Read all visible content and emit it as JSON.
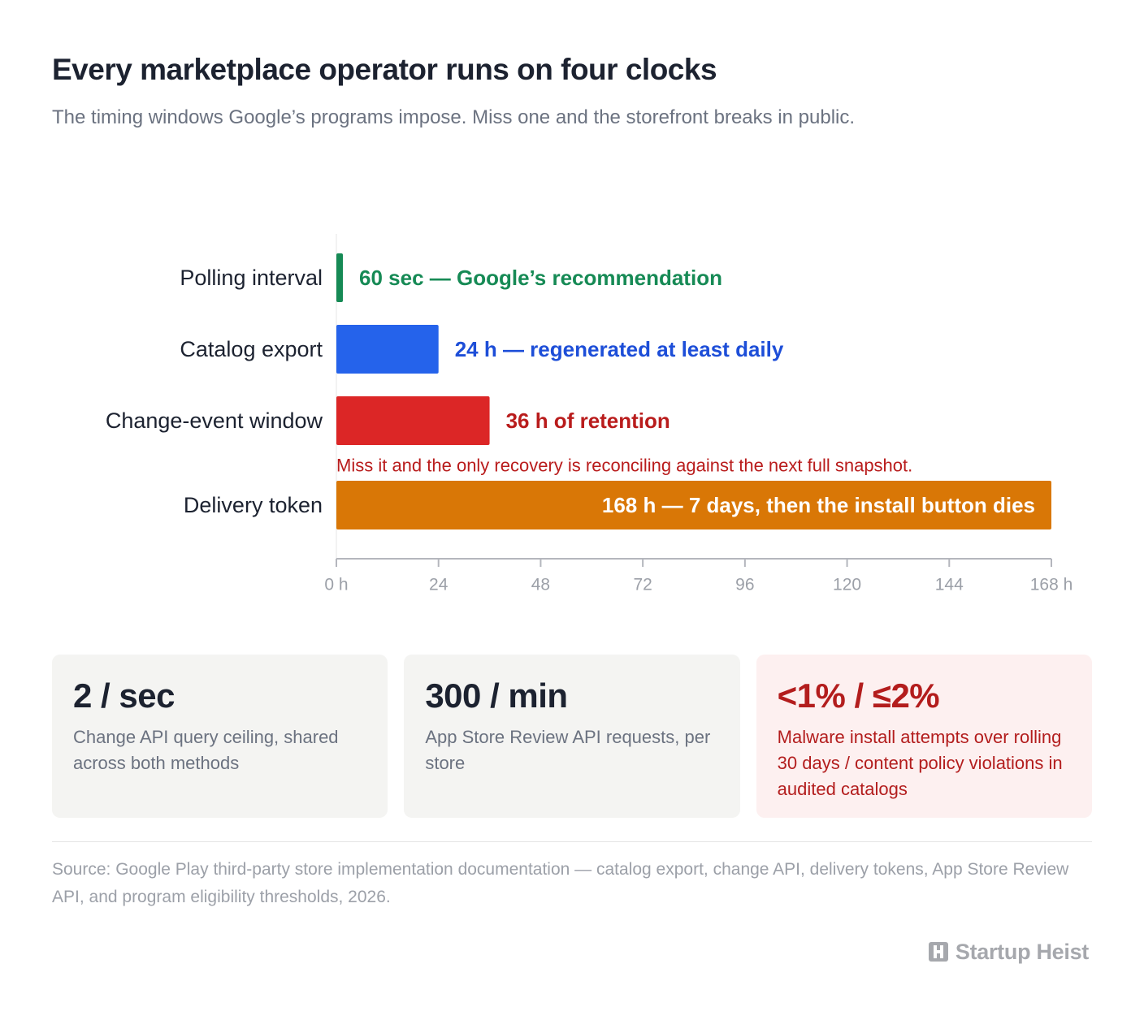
{
  "header": {
    "title": "Every marketplace operator runs on four clocks",
    "subtitle": "The timing windows Google’s programs impose. Miss one and the storefront breaks in public."
  },
  "chart_data": {
    "type": "bar",
    "orientation": "horizontal",
    "categories": [
      "Polling interval",
      "Catalog export",
      "Change-event window",
      "Delivery token"
    ],
    "values": [
      0.0167,
      24,
      36,
      168
    ],
    "value_labels": [
      "60 sec — Google’s recommendation",
      "24 h — regenerated at least daily",
      "36 h of retention",
      "168 h — 7 days, then the install button dies"
    ],
    "label_position": [
      "outside",
      "outside",
      "outside",
      "inside-right"
    ],
    "colors": [
      "#168a55",
      "#2563eb",
      "#dc2626",
      "#d97706"
    ],
    "label_colors": [
      "#168a55",
      "#1d4ed8",
      "#b91c1c",
      "#ffffff"
    ],
    "annotation": {
      "category": "Change-event window",
      "text": "Miss it and the only recovery is reconciling against the next full snapshot.",
      "color": "#b91c1c"
    },
    "xlim": [
      0,
      168
    ],
    "xticks": [
      0,
      24,
      48,
      72,
      96,
      120,
      144,
      168
    ],
    "xtick_labels": [
      "0 h",
      "24",
      "48",
      "72",
      "96",
      "120",
      "144",
      "168 h"
    ],
    "xlabel": "",
    "ylabel": "",
    "grid": false,
    "legend": "none"
  },
  "stats": [
    {
      "value": "2 / sec",
      "description": "Change API query ceiling, shared across both methods"
    },
    {
      "value": "300 / min",
      "description": "App Store Review API requests, per store"
    },
    {
      "value": "<1% / ≤2%",
      "description": "Malware install attempts over rolling 30 days / content policy violations in audited catalogs"
    }
  ],
  "footer": {
    "source": "Source: Google Play third-party store implementation documentation — catalog export, change API, delivery tokens, App Store Review API, and program eligibility thresholds, 2026.",
    "brand": "Startup Heist",
    "brand_icon": "building-logo-icon"
  }
}
